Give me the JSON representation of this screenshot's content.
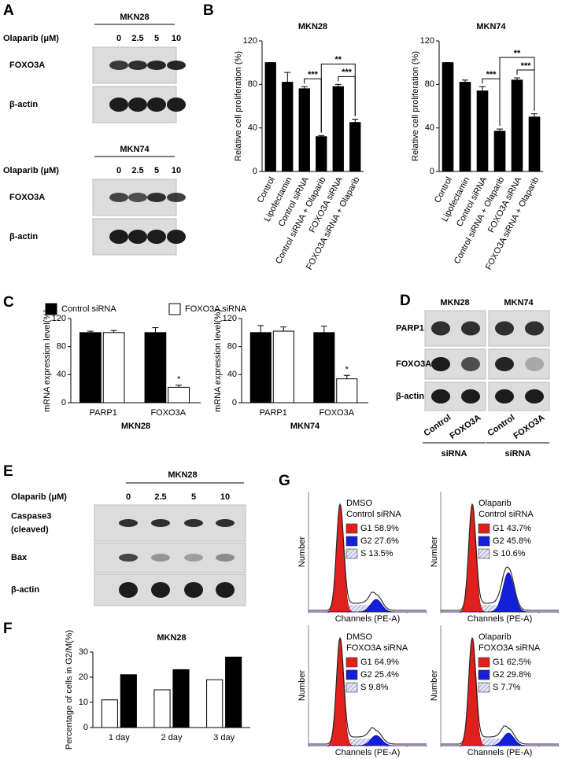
{
  "figure": {
    "panel_labels": [
      "A",
      "B",
      "C",
      "D",
      "E",
      "F",
      "G"
    ],
    "panel_a": {
      "blots": [
        {
          "cell_line": "MKN28",
          "treatment": "Olaparib (μM)",
          "doses": [
            "0",
            "2.5",
            "5",
            "10"
          ],
          "rows": [
            "FOXO3A",
            "β-actin"
          ]
        },
        {
          "cell_line": "MKN74",
          "treatment": "Olaparib (μM)",
          "doses": [
            "0",
            "2.5",
            "5",
            "10"
          ],
          "rows": [
            "FOXO3A",
            "β-actin"
          ]
        }
      ]
    },
    "panel_d": {
      "cell_lines": [
        "MKN28",
        "MKN74"
      ],
      "rows": [
        "PARP1",
        "FOXO3A",
        "β-actin"
      ],
      "lanes": [
        "Control",
        "FOXO3A",
        "Control",
        "FOXO3A"
      ],
      "groups": [
        "siRNA",
        "siRNA"
      ]
    },
    "panel_e": {
      "cell_line": "MKN28",
      "treatment": "Olaparib (μM)",
      "doses": [
        "0",
        "2.5",
        "5",
        "10"
      ],
      "rows": [
        [
          "Caspase3",
          "(cleaved)"
        ],
        [
          "Bax"
        ],
        [
          "β-actin"
        ]
      ]
    },
    "panel_g": {
      "x_label": "Channels (PE-A)",
      "y_label": "Number",
      "histograms": [
        {
          "treatment": "DMSO",
          "sirna": "Control siRNA",
          "phases": [
            "G1 58.9%",
            "G2 27.6%",
            "S   13.5%"
          ]
        },
        {
          "treatment": "Olaparib",
          "sirna": "Control siRNA",
          "phases": [
            "G1 43.7%",
            "G2 45.8%",
            "S   10.6%"
          ]
        },
        {
          "treatment": "DMSO",
          "sirna": "FOXO3A siRNA",
          "phases": [
            "G1 64.9%",
            "G2 25.4%",
            "S   9.8%"
          ]
        },
        {
          "treatment": "Olaparib",
          "sirna": "FOXO3A siRNA",
          "phases": [
            "G1 62.5%",
            "G2 29.8%",
            "S   7.7%"
          ]
        }
      ]
    }
  },
  "chart_data": [
    {
      "type": "bar",
      "title": "MKN28",
      "y_label": "Relative cell proliferation (%)",
      "categories": [
        "Control",
        "Lipofectamin",
        "Control siRNA",
        "Control siRNA + Olaparib",
        "FOXO3A siRNA",
        "FOXO3A siRNA + Olaparib"
      ],
      "values": [
        100,
        82,
        76,
        32,
        78,
        45
      ],
      "errors": [
        0,
        9,
        2,
        1,
        2,
        3
      ],
      "color": "#000000",
      "ylim": [
        0,
        120
      ],
      "yticks": [
        0,
        40,
        80,
        120
      ],
      "annotations": [
        "***",
        "**",
        "***"
      ]
    },
    {
      "type": "bar",
      "title": "MKN74",
      "y_label": "Relative cell proliferation (%)",
      "categories": [
        "Control",
        "Lipofectamin",
        "Control siRNA",
        "Control siRNA + Olaparib",
        "FOXO3A siRNA",
        "FOXO3A siRNA + Olaparib"
      ],
      "values": [
        100,
        82,
        74,
        37,
        84,
        50
      ],
      "errors": [
        0,
        2,
        4,
        2,
        2,
        3
      ],
      "color": "#000000",
      "ylim": [
        0,
        120
      ],
      "yticks": [
        0,
        40,
        80,
        120
      ],
      "annotations": [
        "***",
        "**",
        "***"
      ]
    },
    {
      "type": "bar",
      "x_label": "MKN28",
      "y_label": "mRNA expression level(%)",
      "categories": [
        "PARP1",
        "FOXO3A"
      ],
      "series": [
        {
          "name": "Control siRNA",
          "color": "#000000",
          "values": [
            100,
            100
          ],
          "errors": [
            2,
            7
          ]
        },
        {
          "name": "FOXO3A siRNA",
          "color": "#ffffff",
          "values": [
            100,
            22
          ],
          "errors": [
            3,
            3
          ]
        }
      ],
      "ylim": [
        0,
        120
      ],
      "yticks": [
        0,
        40,
        80,
        120
      ],
      "annotations": [
        "*"
      ]
    },
    {
      "type": "bar",
      "x_label": "MKN74",
      "y_label": "mRNA expression level(%)",
      "categories": [
        "PARP1",
        "FOXO3A"
      ],
      "series": [
        {
          "name": "Control siRNA",
          "color": "#000000",
          "values": [
            100,
            100
          ],
          "errors": [
            10,
            9
          ]
        },
        {
          "name": "FOXO3A siRNA",
          "color": "#ffffff",
          "values": [
            102,
            34
          ],
          "errors": [
            6,
            5
          ]
        }
      ],
      "ylim": [
        0,
        120
      ],
      "yticks": [
        0,
        40,
        80,
        120
      ],
      "annotations": [
        "*"
      ]
    },
    {
      "type": "bar",
      "title": "MKN28",
      "y_label": "Percentage of cells in G2/M(%)",
      "categories": [
        "1 day",
        "2 day",
        "3 day"
      ],
      "series": [
        {
          "color": "#ffffff",
          "values": [
            11,
            15,
            19
          ]
        },
        {
          "color": "#000000",
          "values": [
            21,
            23,
            28
          ]
        }
      ],
      "ylim": [
        0,
        30
      ],
      "yticks": [
        0,
        10,
        20,
        30
      ]
    }
  ]
}
